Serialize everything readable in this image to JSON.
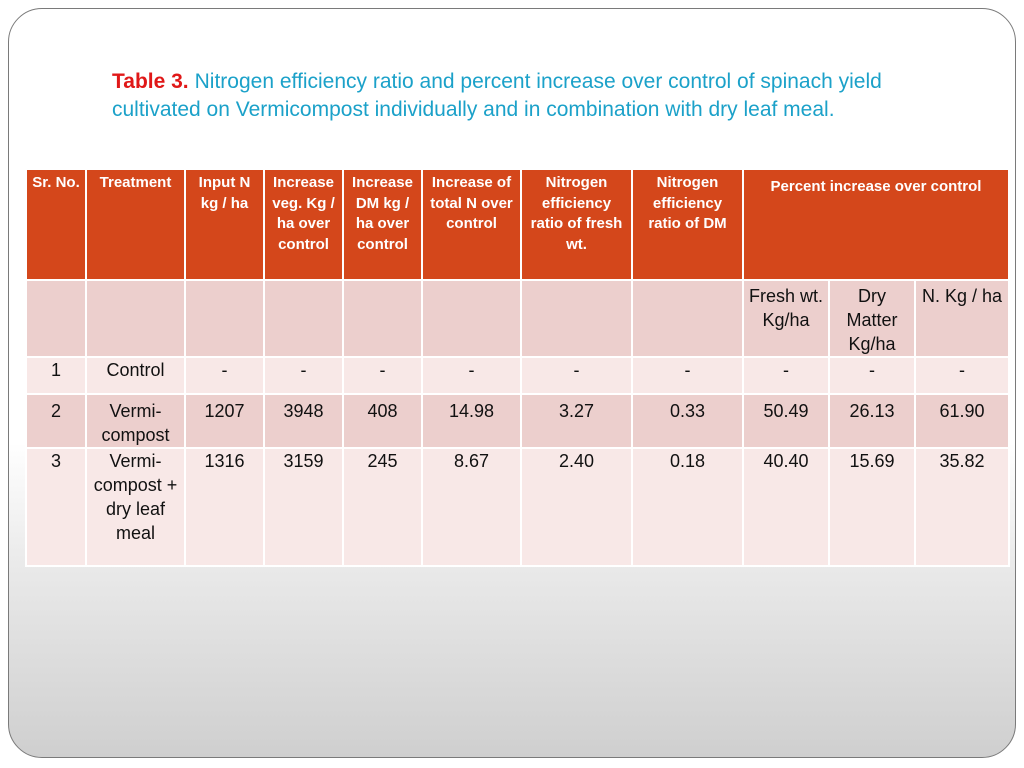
{
  "caption": {
    "label": "Table 3.",
    "text": "Nitrogen efficiency ratio and percent increase over control of spinach yield cultivated on Vermicompost individually and in combination with dry leaf meal."
  },
  "table": {
    "headers": {
      "sr_no": "Sr. No.",
      "treatment": "Treatment",
      "input_n": "Input N kg / ha",
      "increase_veg": "Increase veg. Kg / ha over control",
      "increase_dm": "Increase DM kg / ha over control",
      "increase_total_n": "Increase of total N over control",
      "ner_fresh": "Nitrogen efficiency ratio of fresh wt.",
      "ner_dm": "Nitrogen efficiency ratio of DM",
      "percent_increase": "Percent increase over control"
    },
    "subheaders": {
      "fresh": "Fresh wt. Kg/ha",
      "dry": "Dry Matter Kg/ha",
      "n": "N. Kg / ha"
    },
    "rows": [
      {
        "sr": "1",
        "treatment": "Control",
        "input_n": "-",
        "inc_veg": "-",
        "inc_dm": "-",
        "inc_total_n": "-",
        "ner_fresh": "-",
        "ner_dm": "-",
        "pct_fresh": "-",
        "pct_dry": "-",
        "pct_n": "-"
      },
      {
        "sr": "2",
        "treatment": "Vermi-compost",
        "input_n": "1207",
        "inc_veg": "3948",
        "inc_dm": "408",
        "inc_total_n": "14.98",
        "ner_fresh": "3.27",
        "ner_dm": "0.33",
        "pct_fresh": "50.49",
        "pct_dry": "26.13",
        "pct_n": "61.90"
      },
      {
        "sr": "3",
        "treatment": "Vermi-compost + dry leaf meal",
        "input_n": "1316",
        "inc_veg": "3159",
        "inc_dm": "245",
        "inc_total_n": "8.67",
        "ner_fresh": "2.40",
        "ner_dm": "0.18",
        "pct_fresh": "40.40",
        "pct_dry": "15.69",
        "pct_n": "35.82"
      }
    ]
  },
  "colors": {
    "header_bg": "#d4471b",
    "row_dark": "#eccfcd",
    "row_light": "#f8e8e7",
    "caption_text": "#1ba1c9",
    "caption_label": "#e01818"
  }
}
